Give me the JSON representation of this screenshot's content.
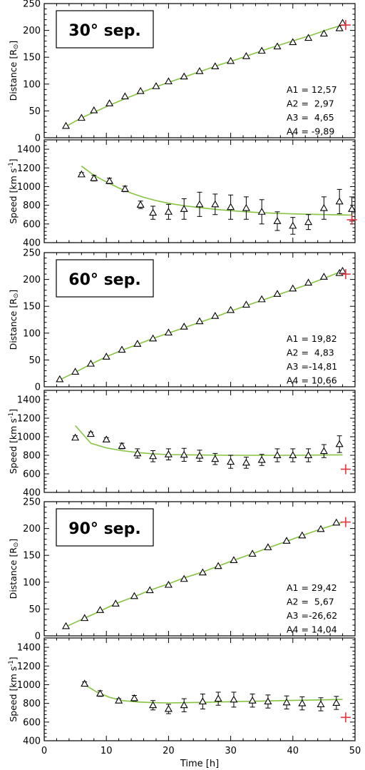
{
  "colors": {
    "model": "#86c440",
    "obs": "#000000",
    "insitu": "#e8323c",
    "frame": "#000000"
  },
  "xaxis": {
    "label": "Time [h]",
    "ticks": [
      0,
      10,
      20,
      30,
      40,
      50
    ],
    "range": [
      0,
      50
    ]
  },
  "chart_data": [
    {
      "type": "scatter",
      "kind": "distance",
      "title": "30° sep.",
      "ylabel_main": "Distance [R",
      "ylabel_unit": "⊙",
      "ylabel_close": "]",
      "ylim": [
        0,
        250
      ],
      "yticks": [
        0,
        50,
        100,
        150,
        200,
        250
      ],
      "params": [
        "A1 = 12,57",
        "A2 =  2,97",
        "A3 =  4,65",
        "A4 = -9,89"
      ],
      "obs": [
        [
          3.5,
          22
        ],
        [
          6,
          37
        ],
        [
          8,
          51
        ],
        [
          10.5,
          64
        ],
        [
          13,
          77
        ],
        [
          15.5,
          87
        ],
        [
          18,
          96
        ],
        [
          20,
          105
        ],
        [
          22.5,
          114
        ],
        [
          25,
          124
        ],
        [
          27.5,
          133
        ],
        [
          30,
          143
        ],
        [
          32.5,
          152
        ],
        [
          35,
          162
        ],
        [
          37.5,
          170
        ],
        [
          40,
          178
        ],
        [
          42.5,
          186
        ],
        [
          45,
          194
        ],
        [
          47.5,
          204
        ],
        [
          48,
          214
        ]
      ],
      "model": [
        [
          3.5,
          21
        ],
        [
          6,
          37
        ],
        [
          8.5,
          50
        ],
        [
          11,
          63
        ],
        [
          13.5,
          75
        ],
        [
          16,
          86
        ],
        [
          18.5,
          97
        ],
        [
          21,
          107
        ],
        [
          23.5,
          117
        ],
        [
          26,
          127
        ],
        [
          28.5,
          137
        ],
        [
          31,
          146
        ],
        [
          33.5,
          156
        ],
        [
          36,
          166
        ],
        [
          38.5,
          175
        ],
        [
          41,
          184
        ],
        [
          43.5,
          193
        ],
        [
          46,
          203
        ],
        [
          48,
          210
        ]
      ],
      "insitu": [
        48.5,
        210
      ]
    },
    {
      "type": "scatter",
      "kind": "speed",
      "ylabel_main": "Speed [km s",
      "ylabel_sup": "-1",
      "ylabel_close": "]",
      "ylim": [
        400,
        1500
      ],
      "yticks": [
        400,
        600,
        800,
        1000,
        1200,
        1400
      ],
      "obs": [
        [
          6,
          1130,
          20
        ],
        [
          8,
          1090,
          30
        ],
        [
          10.5,
          1060,
          30
        ],
        [
          13,
          975,
          30
        ],
        [
          15.5,
          805,
          40
        ],
        [
          17.5,
          720,
          70
        ],
        [
          20,
          730,
          80
        ],
        [
          22.5,
          760,
          110
        ],
        [
          25,
          810,
          130
        ],
        [
          27.5,
          810,
          110
        ],
        [
          30,
          780,
          130
        ],
        [
          32.5,
          770,
          120
        ],
        [
          35,
          730,
          130
        ],
        [
          37.5,
          630,
          100
        ],
        [
          40,
          580,
          90
        ],
        [
          42.5,
          620,
          80
        ],
        [
          45,
          770,
          120
        ],
        [
          47.5,
          840,
          130
        ],
        [
          49.5,
          760,
          130
        ]
      ],
      "model": [
        [
          6,
          1220
        ],
        [
          8,
          1120
        ],
        [
          10,
          1050
        ],
        [
          12,
          985
        ],
        [
          14,
          930
        ],
        [
          16,
          885
        ],
        [
          18,
          850
        ],
        [
          20,
          822
        ],
        [
          22.5,
          795
        ],
        [
          25,
          775
        ],
        [
          27.5,
          757
        ],
        [
          30,
          742
        ],
        [
          32.5,
          730
        ],
        [
          35,
          720
        ],
        [
          37.5,
          713
        ],
        [
          40,
          708
        ],
        [
          42.5,
          704
        ],
        [
          45,
          700
        ],
        [
          47.5,
          697
        ],
        [
          49.5,
          695
        ]
      ],
      "insitu": [
        49.5,
        645
      ]
    },
    {
      "type": "scatter",
      "kind": "distance",
      "title": "60° sep.",
      "ylabel_main": "Distance [R",
      "ylabel_unit": "⊙",
      "ylabel_close": "]",
      "ylim": [
        0,
        250
      ],
      "yticks": [
        0,
        50,
        100,
        150,
        200,
        250
      ],
      "params": [
        "A1 = 19,82",
        "A2 =  4,83",
        "A3 =-14,81",
        "A4 = 10,66"
      ],
      "obs": [
        [
          2.5,
          14
        ],
        [
          5,
          28
        ],
        [
          7.5,
          43
        ],
        [
          10,
          56
        ],
        [
          12.5,
          69
        ],
        [
          15,
          80
        ],
        [
          17.5,
          90
        ],
        [
          20,
          101
        ],
        [
          22.5,
          112
        ],
        [
          25,
          122
        ],
        [
          27.5,
          132
        ],
        [
          30,
          143
        ],
        [
          32.5,
          153
        ],
        [
          35,
          163
        ],
        [
          37.5,
          173
        ],
        [
          40,
          183
        ],
        [
          42.5,
          194
        ],
        [
          45,
          205
        ],
        [
          47.5,
          212
        ],
        [
          48,
          216
        ]
      ],
      "model": [
        [
          2.5,
          13
        ],
        [
          5,
          27
        ],
        [
          7.5,
          42
        ],
        [
          10,
          56
        ],
        [
          12.5,
          68
        ],
        [
          15,
          79
        ],
        [
          17.5,
          90
        ],
        [
          20,
          100
        ],
        [
          22.5,
          110
        ],
        [
          25,
          120
        ],
        [
          27.5,
          130
        ],
        [
          30,
          141
        ],
        [
          32.5,
          151
        ],
        [
          35,
          161
        ],
        [
          37.5,
          171
        ],
        [
          40,
          181
        ],
        [
          42.5,
          191
        ],
        [
          45,
          202
        ],
        [
          48,
          216
        ]
      ],
      "insitu": [
        48.5,
        210
      ]
    },
    {
      "type": "scatter",
      "kind": "speed",
      "ylabel_main": "Speed [km s",
      "ylabel_sup": "-1",
      "ylabel_close": "]",
      "ylim": [
        400,
        1500
      ],
      "yticks": [
        400,
        600,
        800,
        1000,
        1200,
        1400
      ],
      "obs": [
        [
          5,
          990,
          20
        ],
        [
          7.5,
          1030,
          20
        ],
        [
          10,
          970,
          20
        ],
        [
          12.5,
          900,
          30
        ],
        [
          15,
          820,
          50
        ],
        [
          17.5,
          790,
          60
        ],
        [
          20,
          810,
          60
        ],
        [
          22.5,
          805,
          70
        ],
        [
          25,
          795,
          60
        ],
        [
          27.5,
          760,
          60
        ],
        [
          30,
          730,
          70
        ],
        [
          32.5,
          720,
          60
        ],
        [
          35,
          750,
          60
        ],
        [
          37.5,
          800,
          70
        ],
        [
          40,
          800,
          70
        ],
        [
          42.5,
          800,
          70
        ],
        [
          45,
          845,
          70
        ],
        [
          47.5,
          920,
          90
        ]
      ],
      "model": [
        [
          5,
          1120
        ],
        [
          7.5,
          930
        ],
        [
          10,
          880
        ],
        [
          12.5,
          850
        ],
        [
          15,
          830
        ],
        [
          17.5,
          815
        ],
        [
          20,
          808
        ],
        [
          25,
          803
        ],
        [
          30,
          800
        ],
        [
          35,
          800
        ],
        [
          40,
          800
        ],
        [
          45,
          803
        ],
        [
          48,
          805
        ]
      ],
      "insitu": [
        48.5,
        650
      ]
    },
    {
      "type": "scatter",
      "kind": "distance",
      "title": "90° sep.",
      "ylabel_main": "Distance [R",
      "ylabel_unit": "⊙",
      "ylabel_close": "]",
      "ylim": [
        0,
        250
      ],
      "yticks": [
        0,
        50,
        100,
        150,
        200,
        250
      ],
      "params": [
        "A1 = 29,42",
        "A2 =  5,67",
        "A3 =-26,62",
        "A4 = 14,04"
      ],
      "obs": [
        [
          3.5,
          18
        ],
        [
          6.5,
          33
        ],
        [
          9,
          48
        ],
        [
          11.5,
          60
        ],
        [
          14.5,
          74
        ],
        [
          17,
          85
        ],
        [
          20,
          95
        ],
        [
          22.5,
          106
        ],
        [
          25.5,
          118
        ],
        [
          28,
          130
        ],
        [
          30.5,
          141
        ],
        [
          33.5,
          153
        ],
        [
          36,
          165
        ],
        [
          39,
          177
        ],
        [
          41.5,
          187
        ],
        [
          44.5,
          199
        ],
        [
          47,
          211
        ]
      ],
      "model": [
        [
          3.5,
          17
        ],
        [
          6.5,
          33
        ],
        [
          9,
          46
        ],
        [
          11.5,
          60
        ],
        [
          14.5,
          73
        ],
        [
          17,
          85
        ],
        [
          20,
          97
        ],
        [
          22.5,
          108
        ],
        [
          25.5,
          119
        ],
        [
          28,
          130
        ],
        [
          30.5,
          141
        ],
        [
          33.5,
          153
        ],
        [
          36,
          164
        ],
        [
          39,
          176
        ],
        [
          41.5,
          187
        ],
        [
          44.5,
          199
        ],
        [
          48,
          212
        ]
      ],
      "insitu": [
        48.5,
        212
      ]
    },
    {
      "type": "scatter",
      "kind": "speed",
      "ylabel_main": "Speed [km s",
      "ylabel_sup": "-1",
      "ylabel_close": "]",
      "ylim": [
        400,
        1500
      ],
      "yticks": [
        400,
        600,
        800,
        1000,
        1200,
        1400
      ],
      "obs": [
        [
          6.5,
          1010,
          20
        ],
        [
          9,
          905,
          30
        ],
        [
          12,
          830,
          20
        ],
        [
          14.5,
          855,
          30
        ],
        [
          17.5,
          780,
          50
        ],
        [
          20,
          740,
          50
        ],
        [
          22.5,
          780,
          70
        ],
        [
          25.5,
          820,
          80
        ],
        [
          28,
          850,
          70
        ],
        [
          30.5,
          840,
          80
        ],
        [
          33.5,
          830,
          70
        ],
        [
          36,
          820,
          70
        ],
        [
          39,
          810,
          70
        ],
        [
          41.5,
          800,
          70
        ],
        [
          44.5,
          790,
          70
        ],
        [
          47,
          805,
          70
        ]
      ],
      "model": [
        [
          6.5,
          1000
        ],
        [
          8.5,
          920
        ],
        [
          10.5,
          865
        ],
        [
          12.5,
          830
        ],
        [
          15,
          815
        ],
        [
          17.5,
          808
        ],
        [
          20,
          805
        ],
        [
          25,
          810
        ],
        [
          30,
          818
        ],
        [
          35,
          825
        ],
        [
          40,
          832
        ],
        [
          45,
          838
        ],
        [
          48,
          842
        ]
      ],
      "insitu": [
        48.5,
        650
      ]
    }
  ]
}
